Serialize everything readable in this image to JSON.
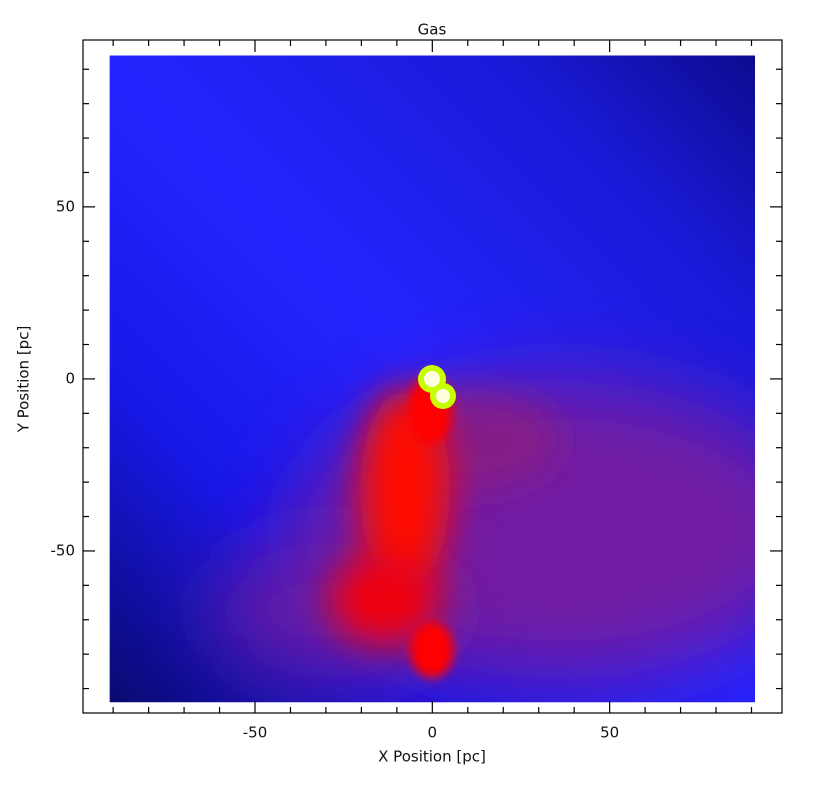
{
  "chart_data": {
    "type": "image",
    "title": "Gas",
    "xlabel": "X Position [pc]",
    "ylabel": "Y Position [pc]",
    "xlim": [
      -98.5,
      98.6
    ],
    "ylim": [
      -97.1,
      98.5
    ],
    "extent": [
      -91,
      91,
      -94,
      94
    ],
    "xticks": [
      -50,
      0,
      50
    ],
    "yticks": [
      -50,
      0,
      50
    ],
    "xminorticks": [
      -90,
      -80,
      -70,
      -60,
      -40,
      -30,
      -20,
      -10,
      10,
      20,
      30,
      40,
      60,
      70,
      80,
      90
    ],
    "yminorticks": [
      -90,
      -80,
      -70,
      -60,
      -40,
      -30,
      -20,
      -10,
      10,
      20,
      30,
      40,
      60,
      70,
      80,
      90
    ]
  }
}
